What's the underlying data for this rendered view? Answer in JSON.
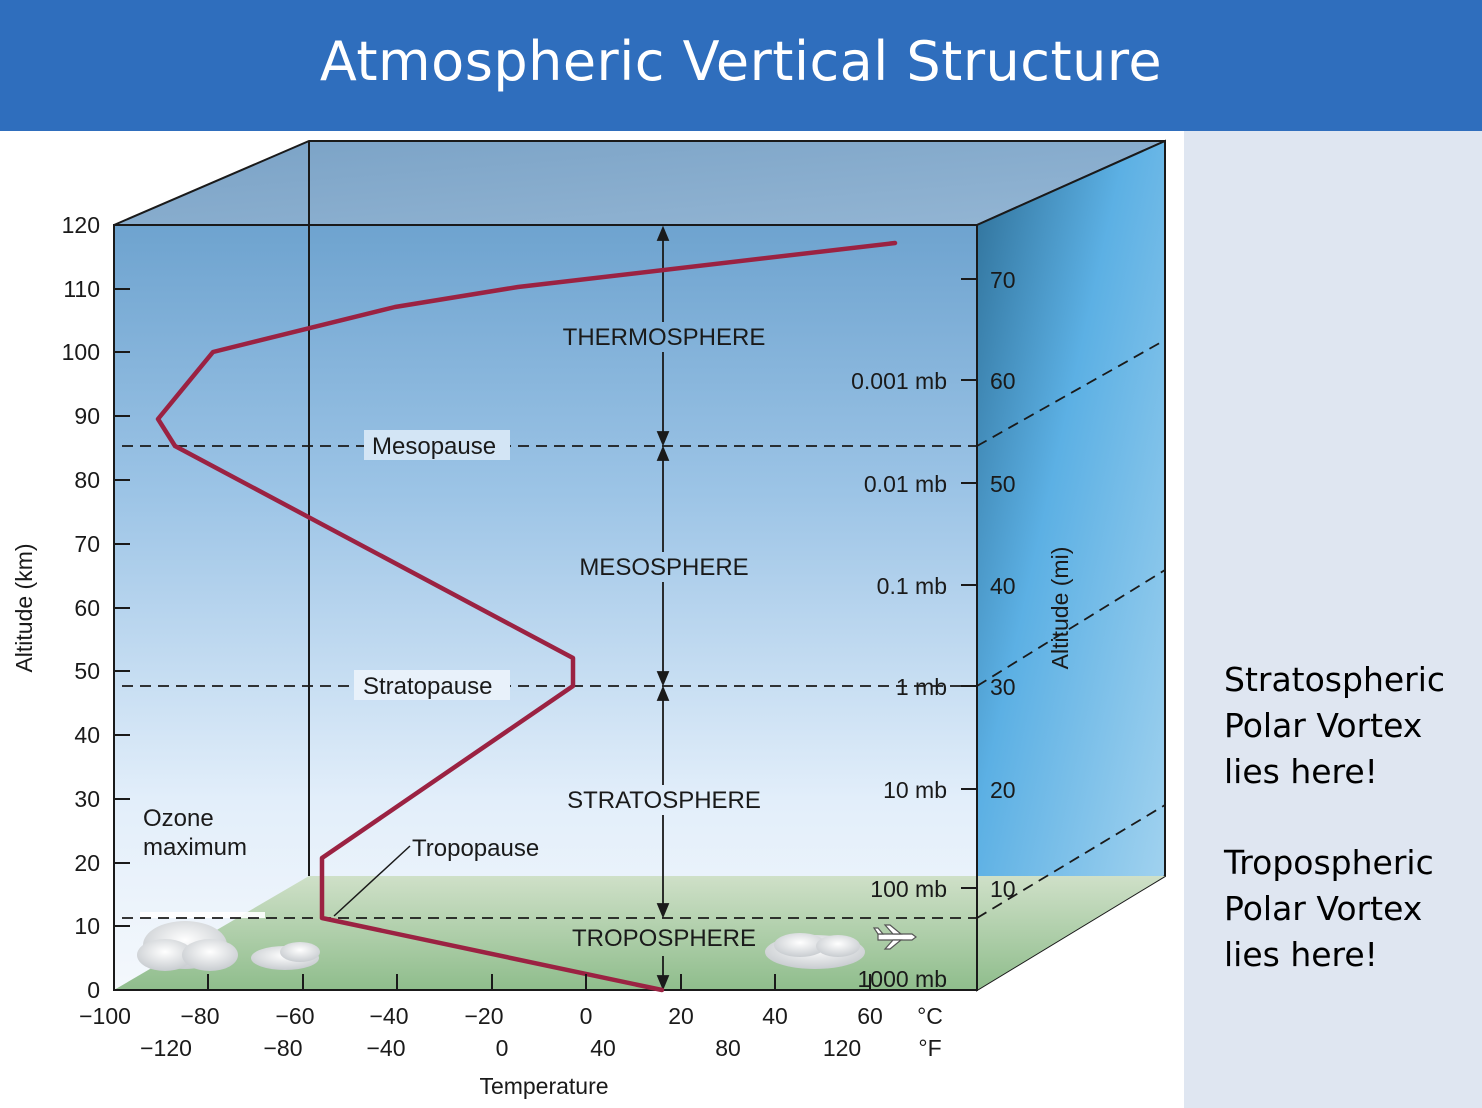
{
  "header": {
    "title": "Atmospheric Vertical Structure"
  },
  "notes": {
    "stratospheric": [
      "Stratospheric",
      "Polar Vortex",
      "lies here!"
    ],
    "tropospheric": [
      "Tropospheric",
      "Polar Vortex",
      "lies here!"
    ]
  },
  "diagram": {
    "layers": [
      "THERMOSPHERE",
      "MESOSPHERE",
      "STRATOSPHERE",
      "TROPOSPHERE"
    ],
    "boundaries": [
      "Mesopause",
      "Stratopause",
      "Tropopause"
    ],
    "ozone_label": [
      "Ozone",
      "maximum"
    ],
    "axes": {
      "left_label": "Altitude (km)",
      "right_label": "Altitude (mi)",
      "bottom_label": "Temperature",
      "km_ticks": [
        "0",
        "10",
        "20",
        "30",
        "40",
        "50",
        "60",
        "70",
        "80",
        "90",
        "100",
        "110",
        "120"
      ],
      "mi_ticks": [
        "10",
        "20",
        "30",
        "40",
        "50",
        "60",
        "70"
      ],
      "celsius_ticks": [
        "−100",
        "−80",
        "−60",
        "−40",
        "−20",
        "0",
        "20",
        "40",
        "60"
      ],
      "fahrenheit_ticks": [
        "−120",
        "−80",
        "−40",
        "0",
        "40",
        "80",
        "120"
      ],
      "celsius_unit": "°C",
      "fahrenheit_unit": "°F"
    },
    "pressure_levels": [
      "1000 mb",
      "100 mb",
      "10 mb",
      "1 mb",
      "0.1 mb",
      "0.01 mb",
      "0.001 mb"
    ]
  },
  "colors": {
    "header": "#2f6ebd",
    "side_panel": "#dfe6f1",
    "temperature_curve": "#9b2242"
  }
}
